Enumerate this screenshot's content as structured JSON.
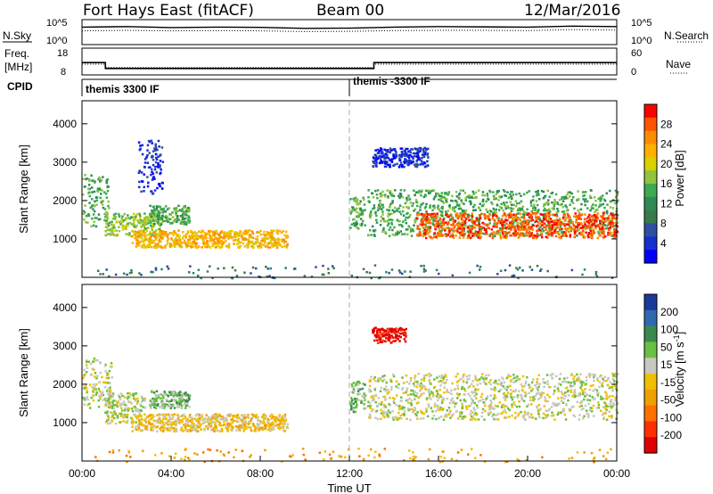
{
  "header": {
    "station": "Fort Hays East (fitACF)",
    "beam": "Beam 00",
    "date": "12/Mar/2016"
  },
  "panels": {
    "noise": {
      "left_label": "N.Sky",
      "right_label": "N.Search",
      "left_ticks": [
        "10^5",
        "10^0"
      ],
      "right_ticks": [
        "10^5",
        "10^0"
      ]
    },
    "freq": {
      "left_label_1": "Freq.",
      "left_label_2": "[MHz]",
      "left_ticks": [
        "18",
        "8"
      ],
      "right_ticks": [
        "60",
        "0"
      ],
      "right_label": "Nave"
    },
    "cpid": {
      "label": "CPID",
      "modes": [
        "themis 3300 IF",
        "themis -3300 IF"
      ]
    }
  },
  "colorbars": {
    "power": {
      "label": "Power [dB]",
      "ticks": [
        "28",
        "24",
        "20",
        "16",
        "12",
        "8",
        "4"
      ],
      "colors": [
        "#ff0000",
        "#ff5500",
        "#ff8c00",
        "#ffb000",
        "#d9d000",
        "#8fc43c",
        "#3caa50",
        "#2e8b57",
        "#3a7a4a",
        "#2f4fa0",
        "#1530d0",
        "#0000ff"
      ]
    },
    "velocity": {
      "label": "Velocity [m s-1]",
      "label_main": "Velocity [m s",
      "label_sup": "-1",
      "label_end": "]",
      "ticks": [
        "200",
        "100",
        "50",
        "15",
        "-15",
        "-50",
        "-100",
        "-200"
      ],
      "colors": [
        "#1a3a9a",
        "#2f6ab0",
        "#3a8a50",
        "#6ac040",
        "#c8c8c0",
        "#f0c000",
        "#f0a000",
        "#ff7000",
        "#ff3000",
        "#e00000"
      ]
    }
  },
  "axes": {
    "ylabel": "Slant Range [km]",
    "yticks": [
      "4000",
      "3000",
      "2000",
      "1000"
    ],
    "xticks": [
      "00:00",
      "04:00",
      "08:00",
      "12:00",
      "16:00",
      "20:00",
      "00:00"
    ],
    "xlabel": "Time UT"
  },
  "chart_data": [
    {
      "type": "line",
      "title": "N.Sky / N.Search",
      "x_range_hours": [
        0,
        24
      ],
      "series": [
        {
          "name": "N.Sky",
          "style": "solid",
          "x": [
            0,
            2,
            4,
            6,
            8,
            10,
            12,
            14,
            16,
            18,
            20,
            22,
            24
          ],
          "y": [
            0.7,
            0.72,
            0.68,
            0.7,
            0.69,
            0.65,
            0.66,
            0.7,
            0.72,
            0.71,
            0.7,
            0.74,
            0.72
          ]
        },
        {
          "name": "N.Search",
          "style": "dotted",
          "x": [
            0,
            2,
            4,
            6,
            8,
            10,
            12,
            14,
            16,
            18,
            20,
            22,
            24
          ],
          "y": [
            0.55,
            0.57,
            0.55,
            0.56,
            0.55,
            0.52,
            0.53,
            0.56,
            0.57,
            0.57,
            0.56,
            0.6,
            0.58
          ]
        }
      ]
    },
    {
      "type": "line",
      "title": "Freq. / Nave",
      "series": [
        {
          "name": "Freq.",
          "units": "MHz",
          "x": [
            0,
            1.05,
            1.05,
            13.1,
            13.1,
            24
          ],
          "y": [
            12.6,
            12.6,
            10.4,
            10.4,
            12.6,
            12.6
          ]
        },
        {
          "name": "Nave",
          "x": [
            0,
            1.05,
            1.05,
            13.1,
            13.1,
            24
          ],
          "y": [
            24,
            24,
            17,
            17,
            24,
            24
          ]
        }
      ],
      "ylim_left": [
        8,
        18
      ],
      "ylim_right": [
        0,
        60
      ]
    },
    {
      "type": "heatmap",
      "name": "power",
      "x_range_hours": [
        0,
        24
      ],
      "ylim": [
        0,
        4600
      ],
      "gap_line_hour": 12.0,
      "regions": [
        {
          "t0": 0.0,
          "t1": 1.2,
          "r0": 1350,
          "r1": 2700,
          "level": 6
        },
        {
          "t0": 1.0,
          "t1": 3.5,
          "r0": 1100,
          "r1": 1700,
          "level": 5
        },
        {
          "t0": 2.5,
          "t1": 3.6,
          "r0": 2200,
          "r1": 3600,
          "level": 10
        },
        {
          "t0": 3.0,
          "t1": 4.8,
          "r0": 1400,
          "r1": 1900,
          "level": 6
        },
        {
          "t0": 2.2,
          "t1": 9.2,
          "r0": 800,
          "r1": 1250,
          "level": 3
        },
        {
          "t0": 12.0,
          "t1": 12.7,
          "r0": 1300,
          "r1": 2100,
          "level": 6
        },
        {
          "t0": 12.8,
          "t1": 24.0,
          "r0": 1100,
          "r1": 2300,
          "level": 6
        },
        {
          "t0": 15.0,
          "t1": 24.0,
          "r0": 1050,
          "r1": 1700,
          "level": 1
        },
        {
          "t0": 13.0,
          "t1": 15.5,
          "r0": 2900,
          "r1": 3400,
          "level": 10
        },
        {
          "t0": 0.5,
          "t1": 24.0,
          "r0": 0,
          "r1": 350,
          "level": 8
        }
      ]
    },
    {
      "type": "heatmap",
      "name": "velocity",
      "x_range_hours": [
        0,
        24
      ],
      "ylim": [
        0,
        4600
      ],
      "gap_line_hour": 12.0,
      "regions": [
        {
          "t0": 0.0,
          "t1": 1.3,
          "r0": 1400,
          "r1": 2700,
          "level": 4
        },
        {
          "t0": 1.0,
          "t1": 2.8,
          "r0": 1000,
          "r1": 1800,
          "level": 4
        },
        {
          "t0": 3.0,
          "t1": 4.8,
          "r0": 1400,
          "r1": 1850,
          "level": 3
        },
        {
          "t0": 2.2,
          "t1": 9.2,
          "r0": 800,
          "r1": 1250,
          "level": 5
        },
        {
          "t0": 12.0,
          "t1": 12.7,
          "r0": 1300,
          "r1": 2100,
          "level": 3
        },
        {
          "t0": 12.8,
          "t1": 24.0,
          "r0": 1100,
          "r1": 2300,
          "level": 4
        },
        {
          "t0": 13.0,
          "t1": 14.5,
          "r0": 3100,
          "r1": 3500,
          "level": 9
        },
        {
          "t0": 0.5,
          "t1": 24.0,
          "r0": 0,
          "r1": 350,
          "level": 6
        }
      ]
    }
  ]
}
